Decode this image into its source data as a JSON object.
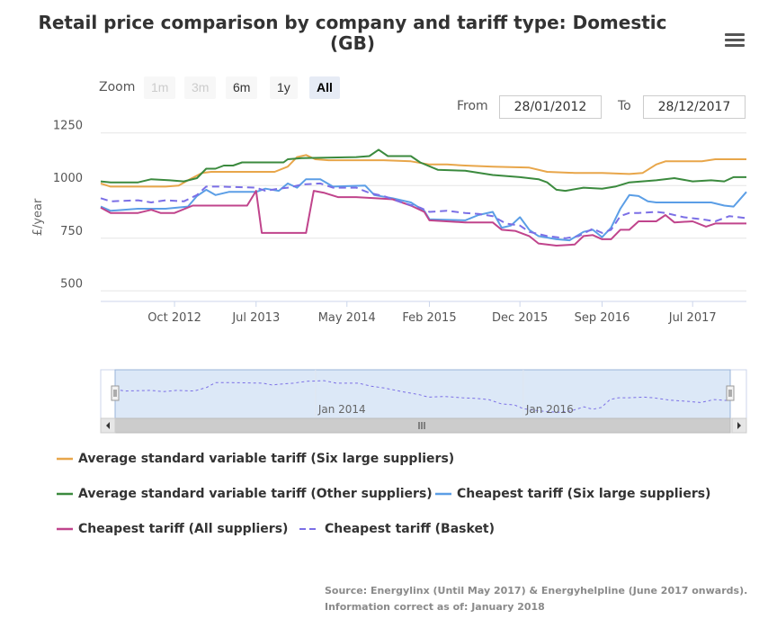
{
  "title": "Retail price comparison by company and tariff type: Domestic (GB)",
  "menu_icon": "hamburger-icon",
  "range_selector": {
    "zoom_label": "Zoom",
    "buttons": [
      {
        "label": "1m",
        "state": "disabled"
      },
      {
        "label": "3m",
        "state": "disabled"
      },
      {
        "label": "6m",
        "state": "normal"
      },
      {
        "label": "1y",
        "state": "normal"
      },
      {
        "label": "All",
        "state": "active"
      }
    ],
    "from_label": "From",
    "from_value": "28/01/2012",
    "to_label": "To",
    "to_value": "28/12/2017"
  },
  "source": {
    "line1": "Source: Energylinx (Until May 2017) & Energyhelpline (June 2017 onwards).",
    "line2": "Information correct as of: January 2018"
  },
  "colors": {
    "six_large_svt": "#e8a64a",
    "other_svt": "#3b8a3e",
    "cheapest_six": "#5b9ee6",
    "cheapest_all": "#c0448c",
    "cheapest_basket": "#7b6fe6",
    "grid": "#e6e6e6",
    "navigator_fill": "#dce8f7"
  },
  "chart_data": {
    "type": "line",
    "ylabel": "£/year",
    "ylim": [
      450,
      1300
    ],
    "yticks": [
      500,
      750,
      1000,
      1250
    ],
    "x_start": "2012-01-28",
    "x_end": "2017-12-28",
    "xticks": [
      {
        "date": "2012-10-01",
        "label": "Oct 2012"
      },
      {
        "date": "2013-07-01",
        "label": "Jul 2013"
      },
      {
        "date": "2014-05-01",
        "label": "May 2014"
      },
      {
        "date": "2015-02-01",
        "label": "Feb 2015"
      },
      {
        "date": "2015-12-01",
        "label": "Dec 2015"
      },
      {
        "date": "2016-09-01",
        "label": "Sep 2016"
      },
      {
        "date": "2017-07-01",
        "label": "Jul 2017"
      }
    ],
    "navigator_ticks": [
      {
        "date": "2014-01-01",
        "label": "Jan 2014"
      },
      {
        "date": "2016-01-01",
        "label": "Jan 2016"
      }
    ],
    "series": [
      {
        "name": "Average standard variable tariff (Six large suppliers)",
        "key": "six_large_svt",
        "dash": false,
        "points": [
          [
            "2012-01-28",
            1010
          ],
          [
            "2012-03-01",
            995
          ],
          [
            "2012-06-01",
            995
          ],
          [
            "2012-09-01",
            995
          ],
          [
            "2012-10-15",
            1000
          ],
          [
            "2012-11-15",
            1025
          ],
          [
            "2013-01-01",
            1060
          ],
          [
            "2013-02-01",
            1065
          ],
          [
            "2013-09-01",
            1065
          ],
          [
            "2013-10-15",
            1090
          ],
          [
            "2013-11-15",
            1135
          ],
          [
            "2013-12-15",
            1145
          ],
          [
            "2014-01-15",
            1125
          ],
          [
            "2014-03-01",
            1120
          ],
          [
            "2014-09-01",
            1120
          ],
          [
            "2014-12-01",
            1115
          ],
          [
            "2015-02-01",
            1100
          ],
          [
            "2015-04-01",
            1100
          ],
          [
            "2015-06-01",
            1095
          ],
          [
            "2015-09-01",
            1090
          ],
          [
            "2016-01-01",
            1085
          ],
          [
            "2016-03-01",
            1065
          ],
          [
            "2016-06-01",
            1060
          ],
          [
            "2016-09-01",
            1060
          ],
          [
            "2016-12-01",
            1055
          ],
          [
            "2017-01-15",
            1060
          ],
          [
            "2017-03-01",
            1100
          ],
          [
            "2017-04-01",
            1115
          ],
          [
            "2017-08-01",
            1115
          ],
          [
            "2017-09-15",
            1125
          ],
          [
            "2017-12-28",
            1125
          ]
        ]
      },
      {
        "name": "Average standard variable tariff (Other suppliers)",
        "key": "other_svt",
        "dash": false,
        "points": [
          [
            "2012-01-28",
            1020
          ],
          [
            "2012-03-01",
            1015
          ],
          [
            "2012-06-01",
            1015
          ],
          [
            "2012-07-15",
            1030
          ],
          [
            "2012-09-15",
            1025
          ],
          [
            "2012-11-01",
            1020
          ],
          [
            "2012-12-15",
            1035
          ],
          [
            "2013-01-15",
            1080
          ],
          [
            "2013-02-15",
            1080
          ],
          [
            "2013-03-15",
            1095
          ],
          [
            "2013-04-15",
            1095
          ],
          [
            "2013-05-15",
            1110
          ],
          [
            "2013-10-01",
            1110
          ],
          [
            "2013-10-15",
            1125
          ],
          [
            "2013-12-01",
            1130
          ],
          [
            "2014-06-01",
            1135
          ],
          [
            "2014-07-15",
            1140
          ],
          [
            "2014-08-15",
            1170
          ],
          [
            "2014-09-15",
            1140
          ],
          [
            "2014-12-01",
            1140
          ],
          [
            "2015-01-01",
            1110
          ],
          [
            "2015-03-01",
            1075
          ],
          [
            "2015-06-01",
            1070
          ],
          [
            "2015-09-01",
            1050
          ],
          [
            "2015-12-01",
            1040
          ],
          [
            "2016-02-01",
            1030
          ],
          [
            "2016-03-01",
            1015
          ],
          [
            "2016-04-01",
            980
          ],
          [
            "2016-05-01",
            975
          ],
          [
            "2016-07-01",
            990
          ],
          [
            "2016-09-01",
            985
          ],
          [
            "2016-10-15",
            995
          ],
          [
            "2016-12-01",
            1015
          ],
          [
            "2017-03-01",
            1025
          ],
          [
            "2017-05-01",
            1035
          ],
          [
            "2017-07-01",
            1020
          ],
          [
            "2017-09-01",
            1025
          ],
          [
            "2017-10-15",
            1020
          ],
          [
            "2017-11-15",
            1040
          ],
          [
            "2017-12-28",
            1040
          ]
        ]
      },
      {
        "name": "Cheapest tariff (Six large suppliers)",
        "key": "cheapest_six",
        "dash": false,
        "points": [
          [
            "2012-01-28",
            900
          ],
          [
            "2012-03-01",
            880
          ],
          [
            "2012-06-01",
            890
          ],
          [
            "2012-09-01",
            890
          ],
          [
            "2012-11-15",
            900
          ],
          [
            "2012-12-15",
            950
          ],
          [
            "2013-01-15",
            980
          ],
          [
            "2013-02-15",
            955
          ],
          [
            "2013-04-01",
            970
          ],
          [
            "2013-07-01",
            970
          ],
          [
            "2013-08-01",
            985
          ],
          [
            "2013-09-15",
            975
          ],
          [
            "2013-10-15",
            1010
          ],
          [
            "2013-11-15",
            990
          ],
          [
            "2013-12-15",
            1030
          ],
          [
            "2014-02-01",
            1030
          ],
          [
            "2014-03-15",
            995
          ],
          [
            "2014-07-01",
            1000
          ],
          [
            "2014-08-01",
            955
          ],
          [
            "2014-10-01",
            940
          ],
          [
            "2014-12-01",
            920
          ],
          [
            "2015-01-15",
            880
          ],
          [
            "2015-02-01",
            840
          ],
          [
            "2015-06-01",
            835
          ],
          [
            "2015-07-15",
            860
          ],
          [
            "2015-09-01",
            875
          ],
          [
            "2015-10-01",
            800
          ],
          [
            "2015-11-01",
            810
          ],
          [
            "2015-12-01",
            850
          ],
          [
            "2016-01-01",
            790
          ],
          [
            "2016-02-01",
            760
          ],
          [
            "2016-04-01",
            745
          ],
          [
            "2016-05-15",
            740
          ],
          [
            "2016-07-01",
            780
          ],
          [
            "2016-08-01",
            790
          ],
          [
            "2016-09-01",
            755
          ],
          [
            "2016-10-01",
            800
          ],
          [
            "2016-11-01",
            890
          ],
          [
            "2016-12-01",
            955
          ],
          [
            "2017-01-01",
            950
          ],
          [
            "2017-02-01",
            925
          ],
          [
            "2017-03-01",
            920
          ],
          [
            "2017-09-01",
            920
          ],
          [
            "2017-10-15",
            905
          ],
          [
            "2017-11-15",
            900
          ],
          [
            "2017-12-28",
            970
          ]
        ]
      },
      {
        "name": "Cheapest tariff (All suppliers)",
        "key": "cheapest_all",
        "dash": false,
        "points": [
          [
            "2012-01-28",
            895
          ],
          [
            "2012-03-01",
            870
          ],
          [
            "2012-06-01",
            870
          ],
          [
            "2012-07-15",
            885
          ],
          [
            "2012-08-15",
            870
          ],
          [
            "2012-10-01",
            870
          ],
          [
            "2012-12-01",
            905
          ],
          [
            "2013-06-01",
            905
          ],
          [
            "2013-07-01",
            975
          ],
          [
            "2013-07-20",
            775
          ],
          [
            "2013-12-15",
            775
          ],
          [
            "2014-01-10",
            975
          ],
          [
            "2014-02-15",
            965
          ],
          [
            "2014-04-01",
            945
          ],
          [
            "2014-06-01",
            945
          ],
          [
            "2014-08-01",
            940
          ],
          [
            "2014-10-01",
            935
          ],
          [
            "2014-12-01",
            905
          ],
          [
            "2015-01-15",
            875
          ],
          [
            "2015-02-01",
            835
          ],
          [
            "2015-06-01",
            825
          ],
          [
            "2015-09-01",
            825
          ],
          [
            "2015-10-01",
            790
          ],
          [
            "2015-11-15",
            785
          ],
          [
            "2016-01-01",
            760
          ],
          [
            "2016-02-01",
            725
          ],
          [
            "2016-04-01",
            715
          ],
          [
            "2016-06-01",
            720
          ],
          [
            "2016-07-01",
            760
          ],
          [
            "2016-08-01",
            765
          ],
          [
            "2016-09-01",
            745
          ],
          [
            "2016-10-01",
            745
          ],
          [
            "2016-11-01",
            790
          ],
          [
            "2016-12-01",
            790
          ],
          [
            "2017-01-01",
            830
          ],
          [
            "2017-03-01",
            830
          ],
          [
            "2017-04-01",
            860
          ],
          [
            "2017-05-01",
            825
          ],
          [
            "2017-07-01",
            830
          ],
          [
            "2017-08-15",
            805
          ],
          [
            "2017-09-15",
            820
          ],
          [
            "2017-12-28",
            820
          ]
        ]
      },
      {
        "name": "Cheapest tariff (Basket)",
        "key": "cheapest_basket",
        "dash": true,
        "points": [
          [
            "2012-01-28",
            940
          ],
          [
            "2012-03-01",
            925
          ],
          [
            "2012-06-01",
            930
          ],
          [
            "2012-07-15",
            920
          ],
          [
            "2012-09-01",
            930
          ],
          [
            "2012-11-01",
            925
          ],
          [
            "2012-12-15",
            955
          ],
          [
            "2013-01-15",
            995
          ],
          [
            "2013-03-01",
            995
          ],
          [
            "2013-07-01",
            990
          ],
          [
            "2013-08-01",
            975
          ],
          [
            "2013-09-15",
            985
          ],
          [
            "2013-10-15",
            990
          ],
          [
            "2013-12-01",
            1005
          ],
          [
            "2014-02-01",
            1010
          ],
          [
            "2014-03-15",
            990
          ],
          [
            "2014-06-01",
            990
          ],
          [
            "2014-07-15",
            965
          ],
          [
            "2014-09-01",
            950
          ],
          [
            "2014-11-01",
            920
          ],
          [
            "2015-01-01",
            895
          ],
          [
            "2015-02-01",
            875
          ],
          [
            "2015-04-01",
            880
          ],
          [
            "2015-06-01",
            870
          ],
          [
            "2015-07-15",
            865
          ],
          [
            "2015-09-01",
            855
          ],
          [
            "2015-10-15",
            820
          ],
          [
            "2015-12-01",
            810
          ],
          [
            "2016-01-01",
            780
          ],
          [
            "2016-03-01",
            760
          ],
          [
            "2016-05-01",
            750
          ],
          [
            "2016-06-15",
            760
          ],
          [
            "2016-08-01",
            795
          ],
          [
            "2016-09-01",
            775
          ],
          [
            "2016-10-01",
            790
          ],
          [
            "2016-11-01",
            855
          ],
          [
            "2016-12-01",
            870
          ],
          [
            "2017-01-01",
            870
          ],
          [
            "2017-03-01",
            875
          ],
          [
            "2017-04-01",
            870
          ],
          [
            "2017-06-01",
            850
          ],
          [
            "2017-08-01",
            840
          ],
          [
            "2017-09-15",
            830
          ],
          [
            "2017-11-01",
            855
          ],
          [
            "2017-12-28",
            845
          ]
        ]
      }
    ],
    "navigator_series": "cheapest_basket",
    "legend_placement": "bottom"
  }
}
